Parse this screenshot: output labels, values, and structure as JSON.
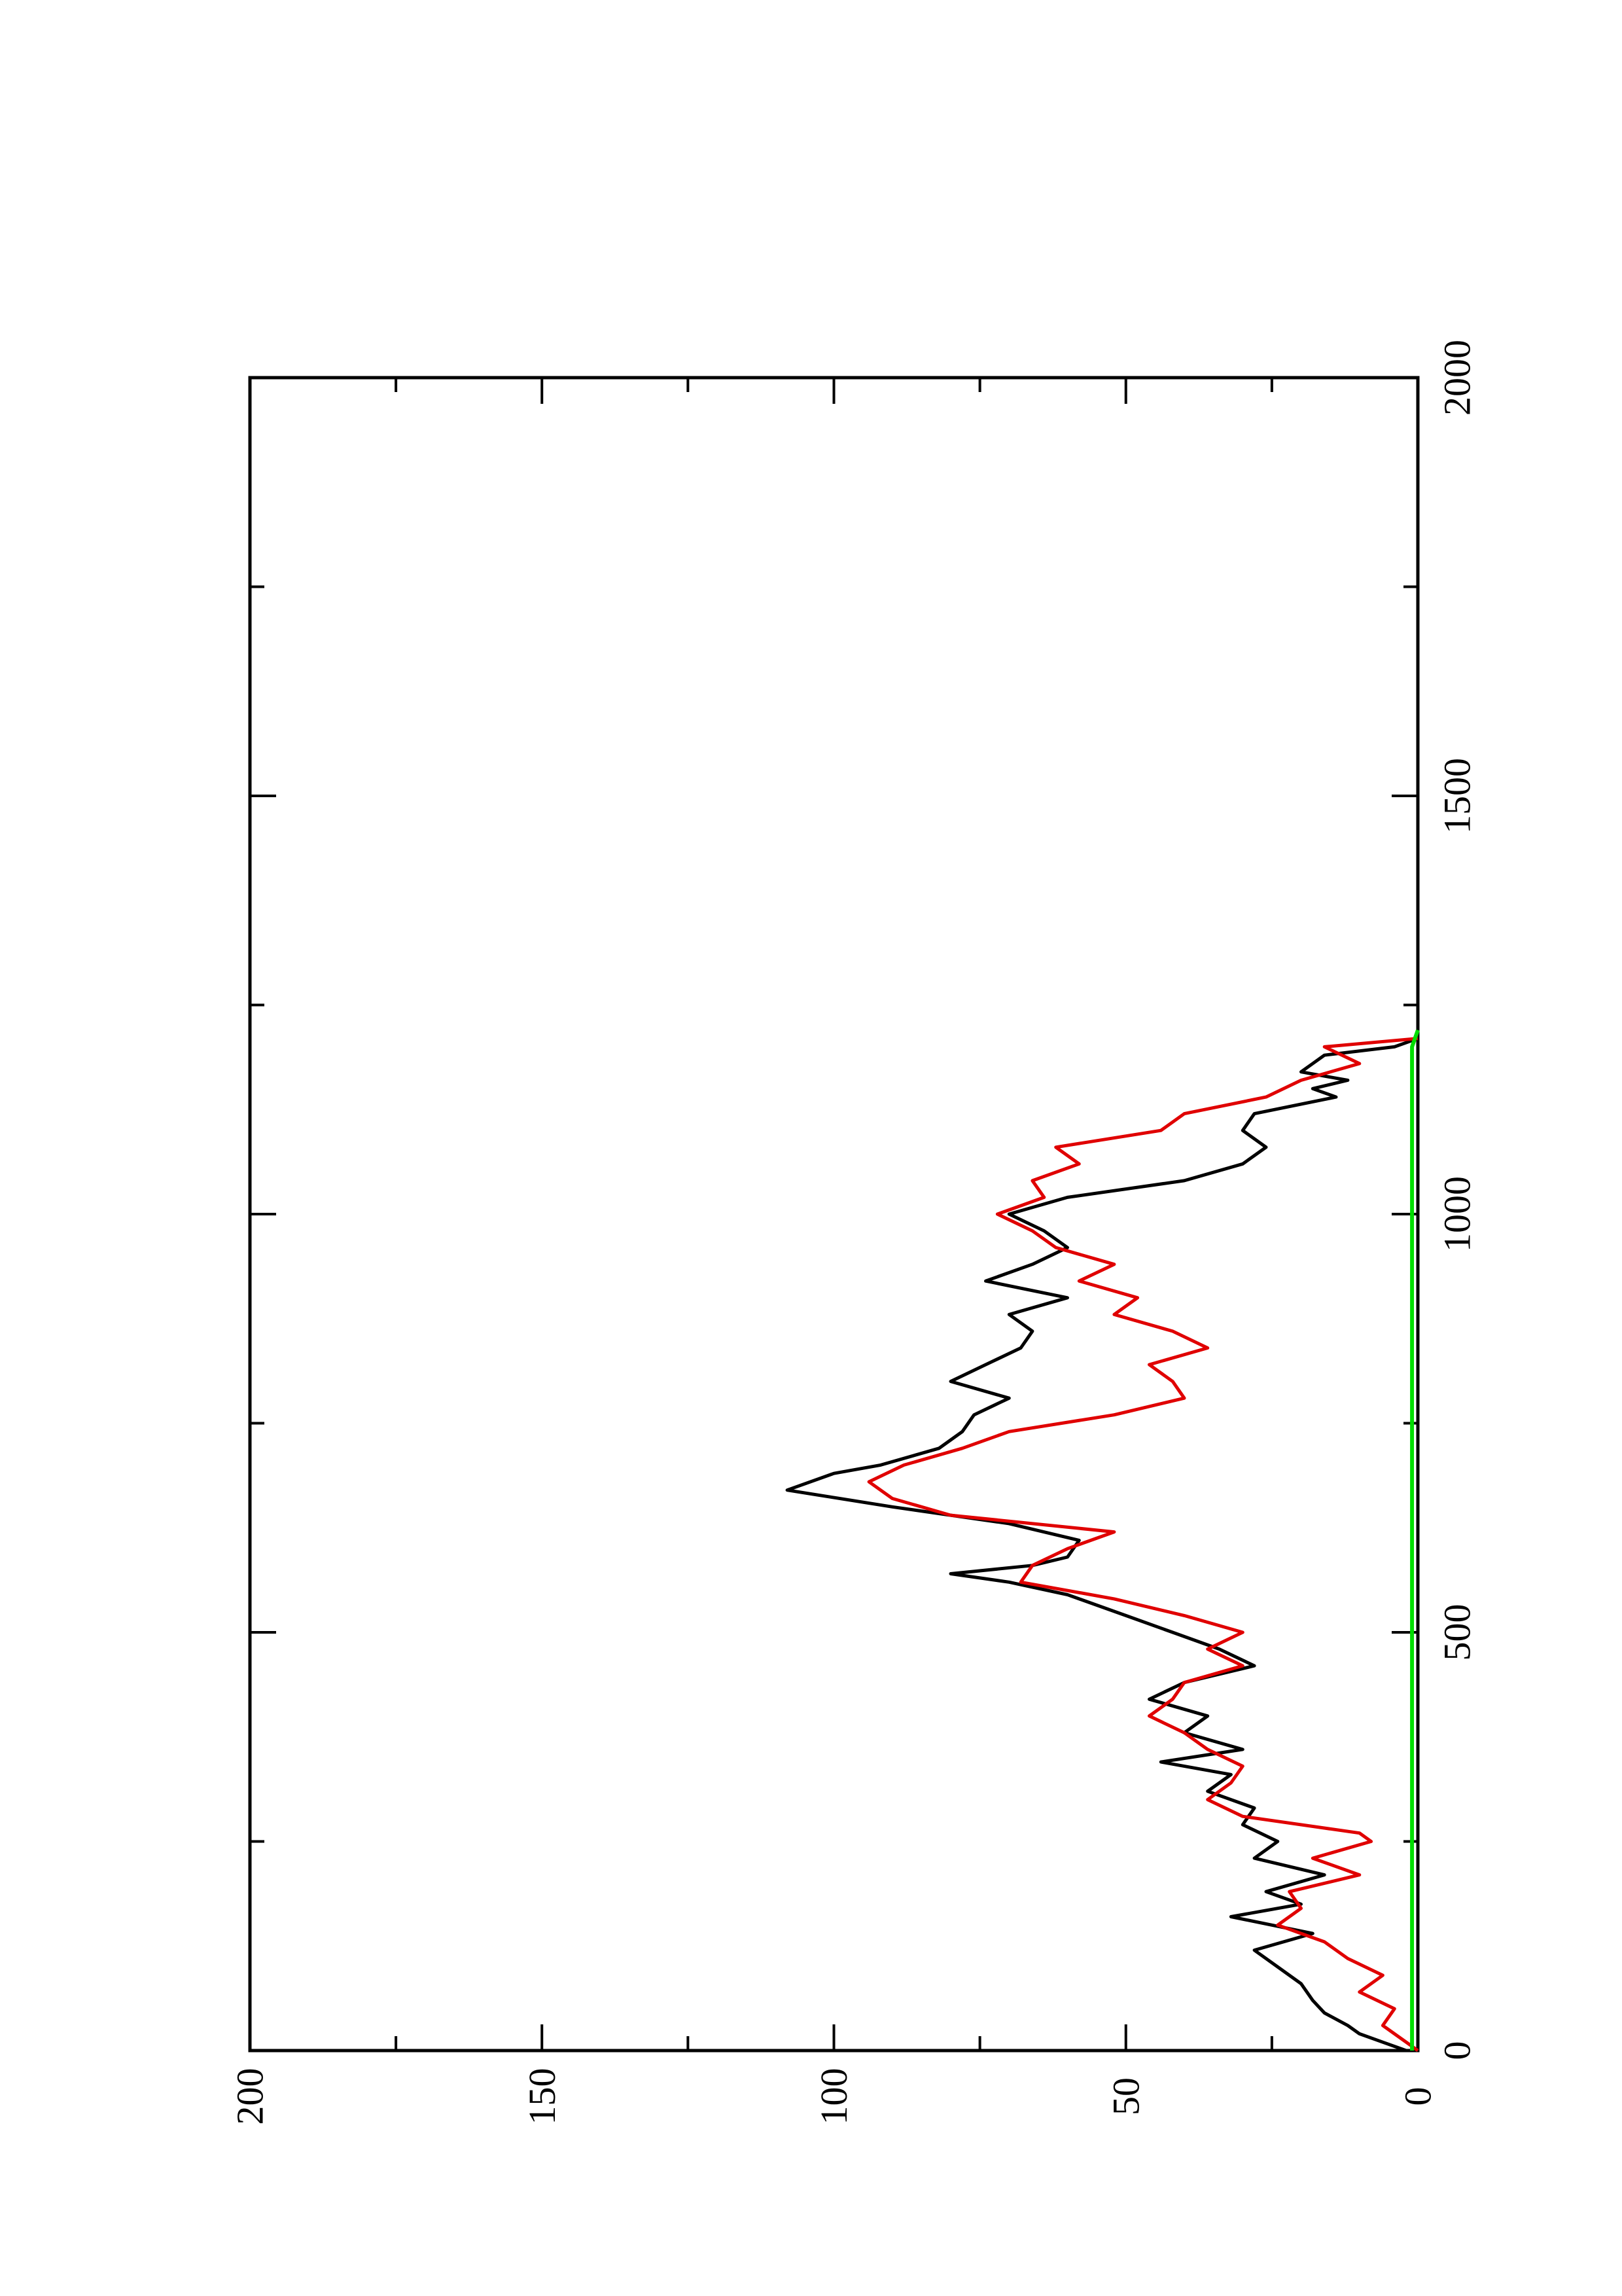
{
  "chart_data": {
    "type": "line",
    "orientation": "rotated-90-ccw",
    "title": "",
    "xlabel": "",
    "ylabel": "",
    "xlim": [
      0,
      2000
    ],
    "ylim": [
      0,
      200
    ],
    "x_ticks": [
      "0",
      "500",
      "1000",
      "1500",
      "2000"
    ],
    "y_ticks": [
      "0",
      "50",
      "100",
      "150",
      "200"
    ],
    "grid": false,
    "legend": "none",
    "colors": {
      "black": "#000000",
      "red": "#e00000",
      "green": "#00dd00"
    },
    "series": [
      {
        "color": "#000000",
        "x": [
          0,
          10,
          20,
          30,
          45,
          60,
          80,
          100,
          120,
          140,
          160,
          175,
          190,
          210,
          230,
          250,
          270,
          290,
          310,
          330,
          345,
          360,
          380,
          400,
          420,
          440,
          460,
          480,
          500,
          520,
          545,
          560,
          570,
          580,
          590,
          610,
          630,
          650,
          670,
          690,
          700,
          720,
          740,
          760,
          780,
          800,
          820,
          840,
          860,
          880,
          900,
          920,
          940,
          960,
          980,
          1000,
          1020,
          1040,
          1060,
          1080,
          1100,
          1120,
          1140,
          1150,
          1160,
          1170,
          1180,
          1190,
          1200,
          1210
        ],
        "y": [
          2,
          6,
          10,
          12,
          16,
          18,
          20,
          24,
          28,
          18,
          32,
          20,
          26,
          16,
          28,
          24,
          30,
          28,
          36,
          32,
          44,
          30,
          40,
          36,
          46,
          40,
          28,
          34,
          42,
          50,
          60,
          70,
          80,
          66,
          60,
          58,
          70,
          90,
          108,
          100,
          92,
          82,
          78,
          76,
          70,
          80,
          74,
          68,
          66,
          70,
          60,
          74,
          66,
          60,
          64,
          70,
          60,
          40,
          30,
          26,
          30,
          28,
          14,
          18,
          12,
          20,
          18,
          16,
          4,
          0
        ]
      },
      {
        "color": "#e00000",
        "x": [
          0,
          10,
          30,
          50,
          70,
          90,
          110,
          130,
          150,
          170,
          190,
          210,
          230,
          250,
          260,
          280,
          300,
          320,
          340,
          360,
          380,
          400,
          420,
          440,
          460,
          480,
          500,
          520,
          540,
          560,
          580,
          600,
          620,
          640,
          660,
          680,
          700,
          720,
          740,
          760,
          780,
          800,
          820,
          840,
          860,
          880,
          900,
          920,
          940,
          960,
          980,
          1000,
          1020,
          1040,
          1060,
          1080,
          1100,
          1120,
          1140,
          1160,
          1180,
          1200,
          1210
        ],
        "y": [
          0,
          2,
          6,
          4,
          10,
          6,
          12,
          16,
          24,
          20,
          22,
          10,
          18,
          8,
          10,
          30,
          36,
          32,
          30,
          36,
          40,
          46,
          42,
          40,
          30,
          36,
          30,
          40,
          52,
          68,
          66,
          60,
          52,
          80,
          90,
          94,
          88,
          78,
          70,
          52,
          40,
          42,
          46,
          36,
          42,
          52,
          48,
          58,
          52,
          62,
          66,
          72,
          64,
          66,
          58,
          62,
          44,
          40,
          26,
          20,
          10,
          16,
          0
        ]
      },
      {
        "color": "#00dd00",
        "x": [
          0,
          100,
          200,
          300,
          400,
          500,
          600,
          700,
          800,
          900,
          1000,
          1100,
          1200,
          1220
        ],
        "y": [
          1,
          1,
          1,
          1,
          1,
          1,
          1,
          1,
          1,
          1,
          1,
          1,
          1,
          0
        ]
      }
    ]
  }
}
